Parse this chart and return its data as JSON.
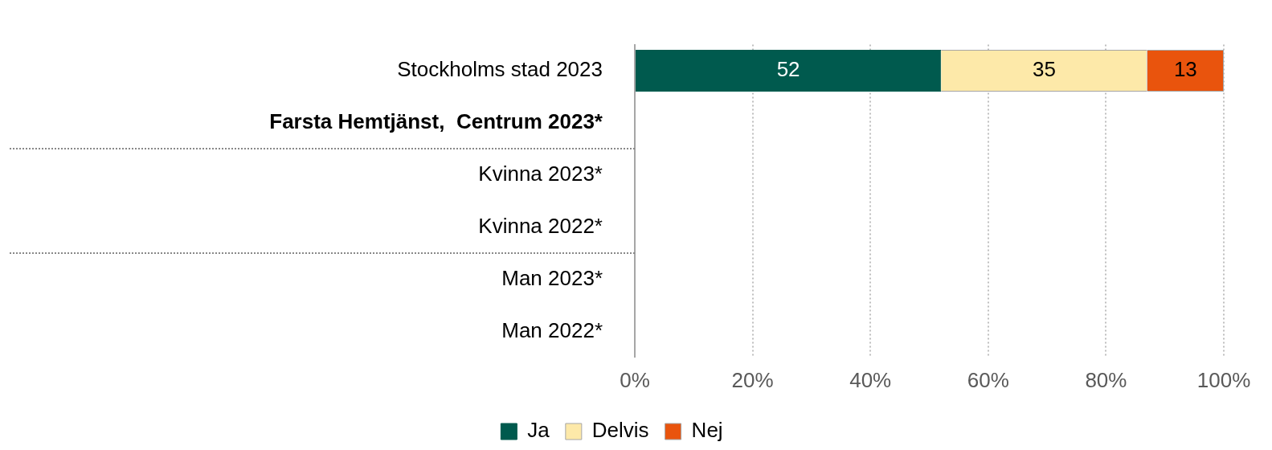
{
  "chart_data": {
    "type": "bar",
    "orientation": "horizontal",
    "stacked": true,
    "categories": [
      "Stockholms stad 2023",
      "Farsta Hemtjänst,  Centrum 2023*",
      "Kvinna 2023*",
      "Kvinna 2022*",
      "Man 2023*",
      "Man 2022*"
    ],
    "series": [
      {
        "name": "Ja",
        "color": "#005a4e",
        "values": [
          52,
          null,
          null,
          null,
          null,
          null
        ]
      },
      {
        "name": "Delvis",
        "color": "#fde9a9",
        "values": [
          35,
          null,
          null,
          null,
          null,
          null
        ]
      },
      {
        "name": "Nej",
        "color": "#e9540d",
        "values": [
          13,
          null,
          null,
          null,
          null,
          null
        ]
      }
    ],
    "xlim": [
      0,
      100
    ],
    "xticks": [
      {
        "value": 0,
        "label": "0%"
      },
      {
        "value": 20,
        "label": "20%"
      },
      {
        "value": 40,
        "label": "40%"
      },
      {
        "value": 60,
        "label": "60%"
      },
      {
        "value": 80,
        "label": "80%"
      },
      {
        "value": 100,
        "label": "100%"
      }
    ],
    "grid": "x",
    "legend": "bottom",
    "data_labels": true
  }
}
